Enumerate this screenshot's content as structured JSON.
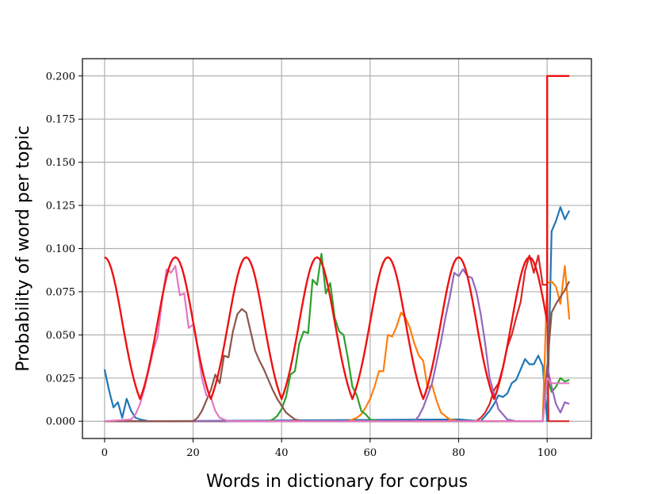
{
  "chart_data": {
    "type": "line",
    "title": "",
    "xlabel": "Words in dictionary for corpus",
    "ylabel": "Probability of word per topic",
    "xlim": [
      -5,
      110
    ],
    "ylim": [
      -0.01,
      0.21
    ],
    "xticks": [
      0,
      20,
      40,
      60,
      80,
      100
    ],
    "yticks": [
      0.0,
      0.025,
      0.05,
      0.075,
      0.1,
      0.125,
      0.15,
      0.175,
      0.2
    ],
    "xtick_labels": [
      "0",
      "20",
      "40",
      "60",
      "80",
      "100"
    ],
    "ytick_labels": [
      "0.000",
      "0.025",
      "0.050",
      "0.075",
      "0.100",
      "0.125",
      "0.150",
      "0.175",
      "0.200"
    ],
    "grid": true,
    "legend": "none",
    "series": [
      {
        "color": "#1f77b4",
        "points": [
          [
            0,
            0.03
          ],
          [
            1,
            0.018
          ],
          [
            2,
            0.008
          ],
          [
            3,
            0.011
          ],
          [
            4,
            0.002
          ],
          [
            5,
            0.013
          ],
          [
            6,
            0.006
          ],
          [
            7,
            0.002
          ],
          [
            8,
            0.001
          ],
          [
            10,
            0.0
          ],
          [
            80,
            0.001
          ],
          [
            85,
            0.0
          ],
          [
            86,
            0.003
          ],
          [
            87,
            0.006
          ],
          [
            88,
            0.01
          ],
          [
            89,
            0.015
          ],
          [
            90,
            0.014
          ],
          [
            91,
            0.016
          ],
          [
            92,
            0.022
          ],
          [
            93,
            0.024
          ],
          [
            94,
            0.03
          ],
          [
            95,
            0.036
          ],
          [
            96,
            0.033
          ],
          [
            97,
            0.033
          ],
          [
            98,
            0.038
          ],
          [
            99,
            0.032
          ],
          [
            100,
            0.0
          ],
          [
            101,
            0.11
          ],
          [
            102,
            0.116
          ],
          [
            103,
            0.124
          ],
          [
            104,
            0.117
          ],
          [
            105,
            0.122
          ]
        ]
      },
      {
        "color": "#ff7f0e",
        "points": [
          [
            0,
            0.0
          ],
          [
            55,
            0.0
          ],
          [
            57,
            0.002
          ],
          [
            58,
            0.004
          ],
          [
            59,
            0.008
          ],
          [
            60,
            0.013
          ],
          [
            61,
            0.02
          ],
          [
            62,
            0.029
          ],
          [
            63,
            0.029
          ],
          [
            64,
            0.05
          ],
          [
            65,
            0.049
          ],
          [
            66,
            0.055
          ],
          [
            67,
            0.063
          ],
          [
            68,
            0.06
          ],
          [
            69,
            0.054
          ],
          [
            70,
            0.045
          ],
          [
            71,
            0.038
          ],
          [
            72,
            0.035
          ],
          [
            73,
            0.019
          ],
          [
            74,
            0.021
          ],
          [
            75,
            0.012
          ],
          [
            76,
            0.005
          ],
          [
            77,
            0.003
          ],
          [
            78,
            0.001
          ],
          [
            80,
            0.0
          ],
          [
            99,
            0.0
          ],
          [
            100,
            0.08
          ],
          [
            101,
            0.081
          ],
          [
            102,
            0.078
          ],
          [
            103,
            0.068
          ],
          [
            104,
            0.09
          ],
          [
            105,
            0.059
          ]
        ]
      },
      {
        "color": "#2ca02c",
        "points": [
          [
            0,
            0.0
          ],
          [
            37,
            0.0
          ],
          [
            38,
            0.001
          ],
          [
            39,
            0.003
          ],
          [
            40,
            0.007
          ],
          [
            41,
            0.014
          ],
          [
            42,
            0.027
          ],
          [
            43,
            0.029
          ],
          [
            44,
            0.045
          ],
          [
            45,
            0.052
          ],
          [
            46,
            0.051
          ],
          [
            47,
            0.082
          ],
          [
            48,
            0.079
          ],
          [
            49,
            0.097
          ],
          [
            50,
            0.074
          ],
          [
            51,
            0.08
          ],
          [
            52,
            0.06
          ],
          [
            53,
            0.052
          ],
          [
            54,
            0.05
          ],
          [
            55,
            0.036
          ],
          [
            56,
            0.02
          ],
          [
            57,
            0.015
          ],
          [
            58,
            0.006
          ],
          [
            59,
            0.004
          ],
          [
            60,
            0.001
          ],
          [
            62,
            0.0
          ],
          [
            99,
            0.0
          ],
          [
            100,
            0.025
          ],
          [
            101,
            0.017
          ],
          [
            102,
            0.02
          ],
          [
            103,
            0.025
          ],
          [
            104,
            0.023
          ],
          [
            105,
            0.024
          ]
        ]
      },
      {
        "color": "#d62728",
        "points": [
          [
            0,
            0.0
          ],
          [
            84,
            0.0
          ],
          [
            85,
            0.002
          ],
          [
            86,
            0.005
          ],
          [
            87,
            0.01
          ],
          [
            88,
            0.018
          ],
          [
            89,
            0.022
          ],
          [
            90,
            0.031
          ],
          [
            91,
            0.043
          ],
          [
            92,
            0.05
          ],
          [
            93,
            0.06
          ],
          [
            94,
            0.069
          ],
          [
            95,
            0.087
          ],
          [
            96,
            0.096
          ],
          [
            97,
            0.086
          ],
          [
            98,
            0.096
          ],
          [
            99,
            0.079
          ],
          [
            100,
            0.079
          ],
          [
            100.3,
            0.0
          ],
          [
            105,
            0.0
          ]
        ]
      },
      {
        "color": "#9467bd",
        "points": [
          [
            0,
            0.0
          ],
          [
            70,
            0.0
          ],
          [
            71,
            0.003
          ],
          [
            72,
            0.008
          ],
          [
            73,
            0.015
          ],
          [
            74,
            0.022
          ],
          [
            75,
            0.034
          ],
          [
            76,
            0.046
          ],
          [
            77,
            0.06
          ],
          [
            78,
            0.072
          ],
          [
            79,
            0.086
          ],
          [
            80,
            0.084
          ],
          [
            81,
            0.088
          ],
          [
            82,
            0.084
          ],
          [
            83,
            0.083
          ],
          [
            84,
            0.075
          ],
          [
            85,
            0.062
          ],
          [
            86,
            0.045
          ],
          [
            87,
            0.025
          ],
          [
            88,
            0.016
          ],
          [
            89,
            0.007
          ],
          [
            90,
            0.004
          ],
          [
            91,
            0.001
          ],
          [
            93,
            0.0
          ],
          [
            99,
            0.0
          ],
          [
            100,
            0.032
          ],
          [
            101,
            0.02
          ],
          [
            102,
            0.01
          ],
          [
            103,
            0.005
          ],
          [
            104,
            0.011
          ],
          [
            105,
            0.01
          ]
        ]
      },
      {
        "color": "#8c564b",
        "points": [
          [
            0,
            0.0
          ],
          [
            20,
            0.0
          ],
          [
            21,
            0.002
          ],
          [
            22,
            0.006
          ],
          [
            23,
            0.012
          ],
          [
            24,
            0.018
          ],
          [
            25,
            0.027
          ],
          [
            26,
            0.022
          ],
          [
            27,
            0.038
          ],
          [
            28,
            0.037
          ],
          [
            29,
            0.052
          ],
          [
            30,
            0.062
          ],
          [
            31,
            0.065
          ],
          [
            32,
            0.063
          ],
          [
            33,
            0.052
          ],
          [
            34,
            0.041
          ],
          [
            35,
            0.035
          ],
          [
            36,
            0.03
          ],
          [
            37,
            0.024
          ],
          [
            38,
            0.018
          ],
          [
            39,
            0.013
          ],
          [
            40,
            0.009
          ],
          [
            41,
            0.005
          ],
          [
            42,
            0.003
          ],
          [
            43,
            0.001
          ],
          [
            45,
            0.0
          ],
          [
            99,
            0.0
          ],
          [
            100,
            0.031
          ],
          [
            101,
            0.063
          ],
          [
            102,
            0.068
          ],
          [
            103,
            0.072
          ],
          [
            104,
            0.076
          ],
          [
            105,
            0.081
          ]
        ]
      },
      {
        "color": "#e377c2",
        "points": [
          [
            0,
            0.0
          ],
          [
            6,
            0.001
          ],
          [
            7,
            0.004
          ],
          [
            8,
            0.01
          ],
          [
            9,
            0.019
          ],
          [
            10,
            0.03
          ],
          [
            11,
            0.041
          ],
          [
            12,
            0.049
          ],
          [
            13,
            0.07
          ],
          [
            14,
            0.088
          ],
          [
            15,
            0.086
          ],
          [
            16,
            0.09
          ],
          [
            17,
            0.073
          ],
          [
            18,
            0.074
          ],
          [
            19,
            0.054
          ],
          [
            20,
            0.056
          ],
          [
            21,
            0.043
          ],
          [
            22,
            0.025
          ],
          [
            23,
            0.015
          ],
          [
            24,
            0.014
          ],
          [
            25,
            0.006
          ],
          [
            26,
            0.002
          ],
          [
            28,
            0.0
          ],
          [
            99,
            0.0
          ],
          [
            100,
            0.025
          ],
          [
            101,
            0.022
          ],
          [
            102,
            0.022
          ],
          [
            103,
            0.022
          ],
          [
            104,
            0.022
          ],
          [
            105,
            0.022
          ]
        ]
      }
    ],
    "reference_curve": {
      "color": "#ee1111",
      "description_free": true,
      "type": "gaussian-bumps",
      "centers": [
        0,
        16,
        32,
        48,
        64,
        80,
        96
      ],
      "peak": 0.095,
      "sigma": 4.0,
      "tail_start": 100,
      "tail_value": 0.2,
      "tail_end": 105
    }
  }
}
